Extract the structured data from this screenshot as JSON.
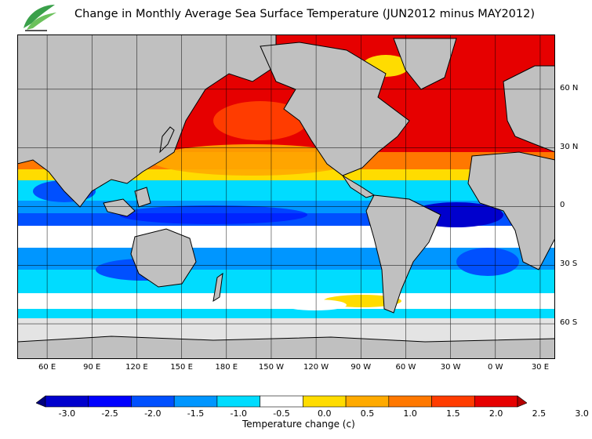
{
  "title": "Change in Monthly Average Sea Surface Temperature (JUN2012 minus MAY2012)",
  "logo_icon": "leaf-logo-icon",
  "colors": {
    "land": "#c0c0c0",
    "ice": "#e4e4e4",
    "border": "#000000",
    "grid": "#000000"
  },
  "latitude_labels": [
    {
      "label": "60 N",
      "lat": 60
    },
    {
      "label": "30 N",
      "lat": 30
    },
    {
      "label": "0",
      "lat": 0
    },
    {
      "label": "30 S",
      "lat": -30
    },
    {
      "label": "60 S",
      "lat": -60
    }
  ],
  "longitude_labels": [
    {
      "label": "60 E",
      "lon": 60
    },
    {
      "label": "90 E",
      "lon": 90
    },
    {
      "label": "120 E",
      "lon": 120
    },
    {
      "label": "150 E",
      "lon": 150
    },
    {
      "label": "180 E",
      "lon": 180
    },
    {
      "label": "150 W",
      "lon": 210
    },
    {
      "label": "120 W",
      "lon": 240
    },
    {
      "label": "90 W",
      "lon": 270
    },
    {
      "label": "60 W",
      "lon": 300
    },
    {
      "label": "30 W",
      "lon": 330
    },
    {
      "label": "0 W",
      "lon": 360
    },
    {
      "label": "30 E",
      "lon": 390
    }
  ],
  "map_extent": {
    "lon_min": 40,
    "lon_max": 400,
    "lat_max": 88,
    "lat_min": -78
  },
  "colorbar": {
    "colors": [
      "#00007f",
      "#0000cd",
      "#0000ff",
      "#0050ff",
      "#0096ff",
      "#00dcff",
      "#ffffff",
      "#ffdc00",
      "#ffaa00",
      "#ff7800",
      "#ff3c00",
      "#e60000",
      "#b40000"
    ],
    "ticks": [
      "-3.0",
      "-2.5",
      "-2.0",
      "-1.5",
      "-1.0",
      "-0.5",
      "0.0",
      "0.5",
      "1.0",
      "1.5",
      "2.0",
      "2.5",
      "3.0"
    ],
    "label": "Temperature change  (c)"
  }
}
